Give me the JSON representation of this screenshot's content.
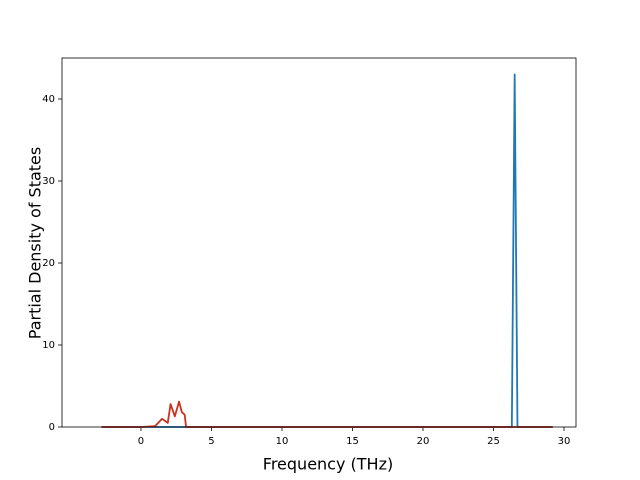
{
  "chart_data": {
    "type": "line",
    "x_label": "Frequency (THz)",
    "y_label": "Partial Density of States",
    "x": [
      -2.8,
      0,
      1.0,
      1.5,
      1.9,
      2.1,
      2.4,
      2.7,
      2.9,
      3.1,
      3.2,
      26.3,
      26.5,
      26.7,
      29.2
    ],
    "series": [
      {
        "color": "#1f77b4",
        "values": [
          0,
          0,
          0,
          0,
          0,
          0,
          0,
          0,
          0,
          0,
          0,
          0,
          43,
          0,
          0
        ]
      },
      {
        "color": "#c8321f",
        "values": [
          0,
          0,
          0.1,
          1.0,
          0.5,
          2.8,
          1.3,
          3.1,
          1.8,
          1.5,
          0,
          0,
          0,
          0,
          0
        ]
      }
    ],
    "xlim": [
      -5.6,
      30.85
    ],
    "ylim": [
      0,
      45
    ],
    "xticks": [
      0,
      5,
      10,
      15,
      20,
      25,
      30
    ],
    "yticks": [
      0,
      10,
      20,
      30,
      40
    ]
  }
}
